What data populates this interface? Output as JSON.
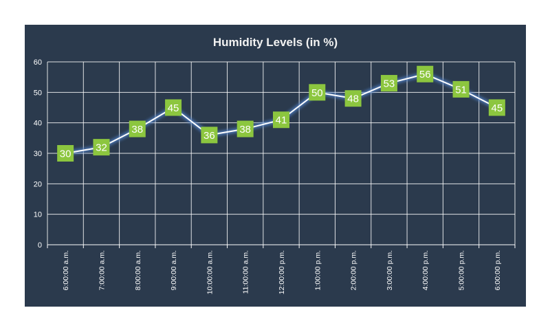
{
  "chart_data": {
    "type": "line",
    "title": "Humidity Levels (in %)",
    "xlabel": "",
    "ylabel": "",
    "categories": [
      "6:00:00 a.m.",
      "7:00:00 a.m.",
      "8:00:00 a.m.",
      "9:00:00 a.m.",
      "10:00:00 a.m.",
      "11:00:00 a.m.",
      "12:00:00 p.m.",
      "1:00:00 p.m.",
      "2:00:00 p.m.",
      "3:00:00 p.m.",
      "4:00:00 p.m.",
      "5:00:00 p.m.",
      "6:00:00 p.m."
    ],
    "values": [
      30,
      32,
      38,
      45,
      36,
      38,
      41,
      50,
      48,
      53,
      56,
      51,
      45
    ],
    "ylim": [
      0,
      60
    ],
    "yticks": [
      "0",
      "10",
      "20",
      "30",
      "40",
      "50",
      "60"
    ],
    "grid": true,
    "legend": "none",
    "colors": {
      "background": "#2b3a4d",
      "line": "#ffffff",
      "glow": "#4f7fc4",
      "marker": "#8cc63f",
      "grid": "#ffffff",
      "text": "#ffffff"
    }
  }
}
